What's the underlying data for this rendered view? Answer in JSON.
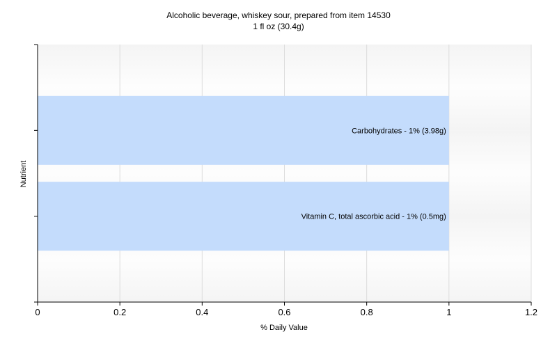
{
  "chart_data": {
    "type": "bar",
    "orientation": "horizontal",
    "title": "Alcoholic beverage, whiskey sour, prepared from item 14530",
    "subtitle": "1 fl oz (30.4g)",
    "xlabel": "% Daily Value",
    "ylabel": "Nutrient",
    "xlim": [
      0,
      1.2
    ],
    "x_ticks": [
      "0",
      "0.2",
      "0.4",
      "0.6",
      "0.8",
      "1",
      "1.2"
    ],
    "grid": true,
    "categories": [
      "Carbohydrates",
      "Vitamin C, total ascorbic acid"
    ],
    "values": [
      1,
      1
    ],
    "bar_labels": [
      "Carbohydrates - 1% (3.98g)",
      "Vitamin C, total ascorbic acid - 1% (0.5mg)"
    ],
    "bar_color": "#c4dcfc"
  }
}
